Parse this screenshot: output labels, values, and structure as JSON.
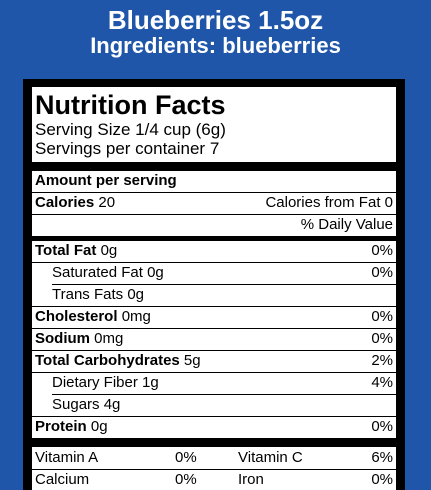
{
  "header": {
    "product": "Blueberries 1.5oz",
    "ingredients": "Ingredients: blueberries"
  },
  "label": {
    "title": "Nutrition Facts",
    "serving_size": "Serving Size 1/4 cup (6g)",
    "servings_per_container": "Servings per container 7",
    "amount_per_serving": "Amount per serving",
    "calories_label": "Calories",
    "calories_value": "20",
    "calories_from_fat": "Calories from Fat  0",
    "daily_value_header": "% Daily Value",
    "nutrients": [
      {
        "name": "Total Fat",
        "amount": "0g",
        "dv": "0%"
      },
      {
        "name": "Saturated Fat",
        "amount": "0g",
        "dv": "0%"
      },
      {
        "name": "Trans Fats",
        "amount": "0g",
        "dv": ""
      },
      {
        "name": "Cholesterol",
        "amount": "0mg",
        "dv": "0%"
      },
      {
        "name": "Sodium",
        "amount": "0mg",
        "dv": "0%"
      },
      {
        "name": "Total Carbohydrates",
        "amount": "5g",
        "dv": "2%"
      },
      {
        "name": "Dietary Fiber",
        "amount": "1g",
        "dv": "4%"
      },
      {
        "name": "Sugars",
        "amount": "4g",
        "dv": ""
      },
      {
        "name": "Protein",
        "amount": "0g",
        "dv": "0%"
      }
    ],
    "vitamins": [
      {
        "name": "Vitamin A",
        "dv": "0%"
      },
      {
        "name": "Vitamin C",
        "dv": "6%"
      },
      {
        "name": "Calcium",
        "dv": "0%"
      },
      {
        "name": "Iron",
        "dv": "0%"
      }
    ]
  },
  "colors": {
    "background": "#1f56a9",
    "header_text": "#ffffff",
    "label_border": "#000000",
    "label_background": "#ffffff"
  }
}
